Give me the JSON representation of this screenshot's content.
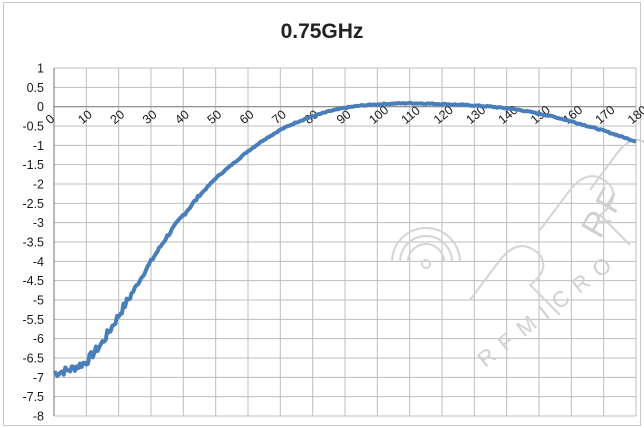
{
  "chart_data": {
    "type": "line",
    "title": "0.75GHz",
    "xlabel": "",
    "ylabel": "",
    "xlim": [
      0,
      180
    ],
    "ylim": [
      -8,
      1
    ],
    "x_ticks": [
      "0",
      "10",
      "20",
      "30",
      "40",
      "50",
      "60",
      "70",
      "80",
      "90",
      "100",
      "110",
      "120",
      "130",
      "140",
      "150",
      "160",
      "170",
      "180"
    ],
    "y_ticks": [
      "1",
      "0.5",
      "0",
      "-0.5",
      "-1",
      "-1.5",
      "-2",
      "-2.5",
      "-3",
      "-3.5",
      "-4",
      "-4.5",
      "-5",
      "-5.5",
      "-6",
      "-6.5",
      "-7",
      "-7.5",
      "-8"
    ],
    "grid": true,
    "series_color": "#4a7ebb",
    "series": [
      {
        "x": [
          0,
          5,
          10,
          15,
          20,
          25,
          30,
          35,
          40,
          45,
          50,
          55,
          60,
          65,
          70,
          75,
          80,
          85,
          90,
          95,
          100,
          105,
          110,
          115,
          120,
          125,
          130,
          135,
          140,
          145,
          150,
          155,
          160,
          165,
          170,
          175,
          180
        ],
        "y": [
          -6.9,
          -6.8,
          -6.6,
          -6.1,
          -5.4,
          -4.7,
          -4.0,
          -3.35,
          -2.8,
          -2.3,
          -1.85,
          -1.5,
          -1.15,
          -0.85,
          -0.6,
          -0.4,
          -0.25,
          -0.12,
          -0.03,
          0.03,
          0.06,
          0.08,
          0.09,
          0.08,
          0.07,
          0.05,
          0.03,
          0.0,
          -0.04,
          -0.1,
          -0.18,
          -0.27,
          -0.38,
          -0.5,
          -0.62,
          -0.76,
          -0.9
        ]
      }
    ]
  },
  "watermark": {
    "brand": "RF",
    "subtext": "RFMICRO"
  }
}
